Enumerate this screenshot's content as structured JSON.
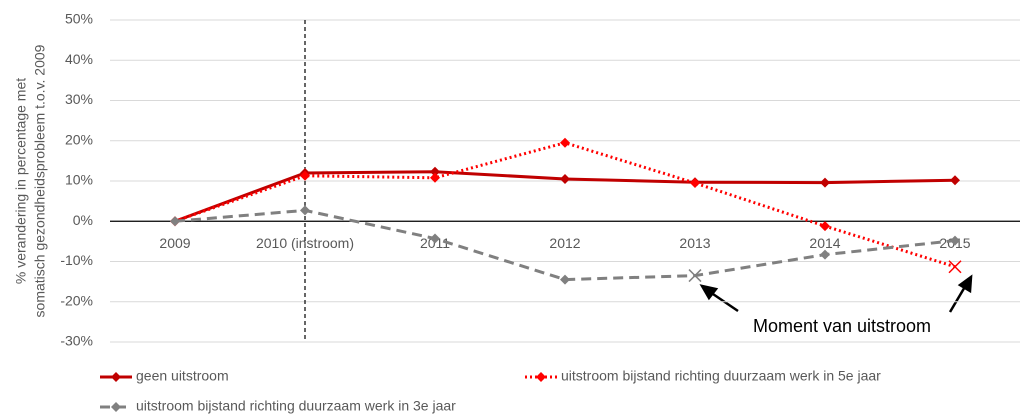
{
  "chart_data": {
    "type": "line",
    "y_label": [
      "% verandering in percentage  met",
      "somatisch gezondheidsprobleem  t.o.v. 2009"
    ],
    "categories": [
      "2009",
      "2010 (instroom)",
      "2011",
      "2012",
      "2013",
      "2014",
      "2015"
    ],
    "series": [
      {
        "name": "geen uitstroom",
        "color": "#c00000",
        "line": "solid",
        "values": [
          0,
          12,
          12.3,
          10.5,
          9.7,
          9.6,
          10.2
        ],
        "markers": [
          "diamond",
          "diamond",
          "diamond",
          "diamond",
          "diamond",
          "diamond",
          "diamond"
        ]
      },
      {
        "name": "uitstroom bijstand richting duurzaam werk in 5e jaar",
        "color": "#ff0000",
        "line": "dotted",
        "values": [
          0,
          11.3,
          10.8,
          19.5,
          9.5,
          -1.2,
          -11.3
        ],
        "markers": [
          "diamond",
          "diamond",
          "diamond",
          "diamond",
          "diamond",
          "diamond",
          "x"
        ]
      },
      {
        "name": "uitstroom bijstand richting duurzaam werk in 3e jaar",
        "color": "#808080",
        "line": "dashed",
        "values": [
          0,
          2.7,
          -4.3,
          -14.5,
          -13.5,
          -8.3,
          -4.8
        ],
        "markers": [
          "diamond",
          "diamond",
          "diamond",
          "diamond",
          "x",
          "diamond",
          "diamond"
        ]
      }
    ],
    "ylim": [
      -30,
      50
    ],
    "yticks": [
      {
        "value": -30,
        "label": "-30%"
      },
      {
        "value": -20,
        "label": "-20%"
      },
      {
        "value": -10,
        "label": "-10%"
      },
      {
        "value": 0,
        "label": "0%"
      },
      {
        "value": 10,
        "label": "10%"
      },
      {
        "value": 20,
        "label": "20%"
      },
      {
        "value": 30,
        "label": "30%"
      },
      {
        "value": 40,
        "label": "40%"
      },
      {
        "value": 50,
        "label": "50%"
      }
    ],
    "grid": true,
    "legend": "bottom",
    "annotation": "Moment van uitstroom"
  }
}
